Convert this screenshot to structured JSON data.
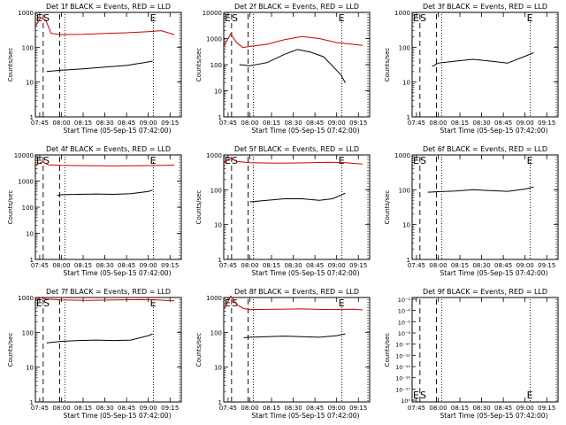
{
  "figure": {
    "xlabel": "Start Time (05-Sep-15 07:42:00)",
    "ylabel": "Counts/sec",
    "xticks": [
      "07:45",
      "08:00",
      "08:15",
      "08:30",
      "08:45",
      "09:00",
      "09:15"
    ],
    "series_colors": {
      "events": "#000000",
      "lld": "#cc0000"
    },
    "markers": {
      "E": "E",
      "S": "S"
    }
  },
  "chart_data": [
    {
      "type": "line",
      "title": "Det 1f BLACK = Events, RED = LLD",
      "yticks": [
        "1",
        "10",
        "100",
        "1000"
      ],
      "ylim": [
        1,
        1000
      ],
      "scale": "log",
      "events": {
        "x": [
          7.83,
          8.0,
          8.25,
          8.5,
          8.75,
          8.95,
          9.05
        ],
        "y": [
          20,
          22,
          24,
          27,
          30,
          36,
          40
        ]
      },
      "lld": {
        "x": [
          7.7,
          7.76,
          7.82,
          7.88,
          8.0,
          8.25,
          8.5,
          8.75,
          9.0,
          9.15,
          9.3
        ],
        "y": [
          400,
          700,
          600,
          250,
          230,
          235,
          250,
          260,
          280,
          300,
          230
        ]
      }
    },
    {
      "type": "line",
      "title": "Det 2f BLACK = Events, RED = LLD",
      "yticks": [
        "1",
        "10",
        "100",
        "1000",
        "10000"
      ],
      "ylim": [
        1,
        10000
      ],
      "scale": "log",
      "events": {
        "x": [
          7.88,
          8.0,
          8.2,
          8.4,
          8.55,
          8.7,
          8.85,
          8.95,
          9.05,
          9.1
        ],
        "y": [
          100,
          90,
          120,
          250,
          380,
          300,
          200,
          90,
          40,
          20
        ]
      },
      "lld": {
        "x": [
          7.7,
          7.78,
          7.85,
          7.92,
          8.0,
          8.2,
          8.4,
          8.6,
          8.8,
          9.0,
          9.3
        ],
        "y": [
          500,
          1500,
          700,
          450,
          500,
          600,
          900,
          1200,
          1000,
          700,
          550
        ]
      }
    },
    {
      "type": "line",
      "title": "Det 3f BLACK = Events, RED = LLD",
      "yticks": [
        "1",
        "10",
        "100",
        "1000"
      ],
      "ylim": [
        1,
        1000
      ],
      "scale": "log",
      "events": {
        "x": [
          7.93,
          8.0,
          8.2,
          8.4,
          8.6,
          8.8,
          9.0,
          9.1
        ],
        "y": [
          28,
          35,
          40,
          45,
          40,
          35,
          55,
          70
        ]
      },
      "lld": {
        "x": [],
        "y": []
      }
    },
    {
      "type": "line",
      "title": "Det 4f BLACK = Events, RED = LLD",
      "yticks": [
        "1",
        "10",
        "100",
        "1000",
        "10000"
      ],
      "ylim": [
        1,
        10000
      ],
      "scale": "log",
      "events": {
        "x": [
          7.95,
          8.0,
          8.2,
          8.4,
          8.6,
          8.8,
          9.0,
          9.05
        ],
        "y": [
          280,
          300,
          310,
          320,
          310,
          330,
          400,
          450
        ]
      },
      "lld": {
        "x": [
          7.7,
          7.78,
          7.85,
          8.0,
          8.3,
          8.6,
          8.9,
          9.2,
          9.3
        ],
        "y": [
          4000,
          5500,
          4200,
          4000,
          3900,
          3800,
          3900,
          4000,
          4100
        ]
      }
    },
    {
      "type": "line",
      "title": "Det 5f BLACK = Events, RED = LLD",
      "yticks": [
        "1",
        "10",
        "100",
        "1000"
      ],
      "ylim": [
        1,
        1000
      ],
      "scale": "log",
      "events": {
        "x": [
          8.0,
          8.2,
          8.4,
          8.6,
          8.8,
          8.95,
          9.05,
          9.1
        ],
        "y": [
          45,
          50,
          55,
          55,
          50,
          55,
          70,
          80
        ]
      },
      "lld": {
        "x": [
          7.7,
          7.78,
          7.85,
          8.0,
          8.3,
          8.6,
          8.9,
          9.1,
          9.3
        ],
        "y": [
          600,
          800,
          650,
          600,
          580,
          590,
          620,
          600,
          550
        ]
      }
    },
    {
      "type": "line",
      "title": "Det 6f BLACK = Events, RED = LLD",
      "yticks": [
        "1",
        "10",
        "100",
        "1000"
      ],
      "ylim": [
        1,
        1000
      ],
      "scale": "log",
      "events": {
        "x": [
          7.88,
          8.0,
          8.2,
          8.4,
          8.6,
          8.8,
          9.0,
          9.1
        ],
        "y": [
          85,
          88,
          92,
          100,
          95,
          90,
          105,
          120
        ]
      },
      "lld": {
        "x": [],
        "y": []
      }
    },
    {
      "type": "line",
      "title": "Det 7f BLACK = Events, RED = LLD",
      "yticks": [
        "1",
        "10",
        "100",
        "1000"
      ],
      "ylim": [
        1,
        1000
      ],
      "scale": "log",
      "events": {
        "x": [
          7.83,
          8.0,
          8.2,
          8.4,
          8.6,
          8.8,
          9.0,
          9.05
        ],
        "y": [
          50,
          55,
          58,
          60,
          58,
          60,
          80,
          90
        ]
      },
      "lld": {
        "x": [
          7.7,
          7.76,
          7.82,
          8.0,
          8.3,
          8.6,
          8.9,
          9.1,
          9.3
        ],
        "y": [
          850,
          1000,
          900,
          850,
          830,
          850,
          870,
          850,
          800
        ]
      }
    },
    {
      "type": "line",
      "title": "Det 8f BLACK = Events, RED = LLD",
      "yticks": [
        "1",
        "10",
        "100",
        "1000"
      ],
      "ylim": [
        1,
        1000
      ],
      "scale": "log",
      "events": {
        "x": [
          7.93,
          8.0,
          8.2,
          8.4,
          8.6,
          8.8,
          9.0,
          9.1
        ],
        "y": [
          70,
          72,
          75,
          78,
          75,
          72,
          80,
          90
        ]
      },
      "lld": {
        "x": [
          7.7,
          7.78,
          7.86,
          7.93,
          8.0,
          8.3,
          8.6,
          8.9,
          9.2,
          9.3
        ],
        "y": [
          450,
          1100,
          600,
          480,
          450,
          460,
          470,
          450,
          460,
          440
        ]
      }
    },
    {
      "type": "line",
      "title": "Det 9f BLACK = Events, RED = LLD",
      "yticks": [
        "10⁻²",
        "10⁻⁴",
        "10⁻⁶",
        "10⁻⁸",
        "10⁻¹⁰",
        "10⁻¹²",
        "10⁻¹⁴",
        "10⁻¹⁶",
        "10⁻¹⁷",
        "10⁰"
      ],
      "ylim": [
        1,
        100
      ],
      "scale": "log",
      "events": {
        "x": [],
        "y": []
      },
      "lld": {
        "x": [],
        "y": []
      }
    }
  ]
}
